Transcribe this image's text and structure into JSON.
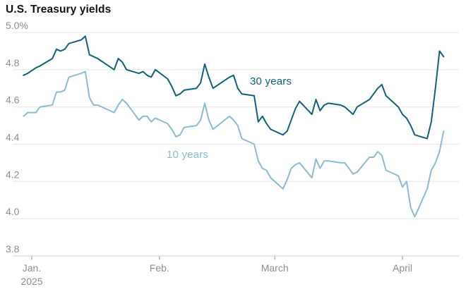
{
  "title": "U.S. Treasury yields",
  "chart_data": {
    "type": "line",
    "title": "U.S. Treasury yields",
    "grid": "horizontal",
    "legend": "inline-line-labels",
    "ylim": [
      3.8,
      5.0
    ],
    "y_ticks": {
      "labels": [
        "5.0%",
        "4.8",
        "4.6",
        "4.4",
        "4.2",
        "4.0",
        "3.8"
      ],
      "values": [
        5.0,
        4.8,
        4.6,
        4.4,
        4.2,
        4.0,
        3.8
      ]
    },
    "x_ticks": [
      {
        "label": "Jan.",
        "sublabel": "2025",
        "day_offset": 0
      },
      {
        "label": "Feb.",
        "day_offset": 31
      },
      {
        "label": "March",
        "day_offset": 59
      },
      {
        "label": "April",
        "day_offset": 90
      }
    ],
    "x": [
      "Dec. 30",
      "Dec. 31",
      "Jan. 2",
      "Jan. 3",
      "Jan. 6",
      "Jan. 7",
      "Jan. 8",
      "Jan. 9",
      "Jan. 10",
      "Jan. 13",
      "Jan. 14",
      "Jan. 15",
      "Jan. 16",
      "Jan. 17",
      "Jan. 21",
      "Jan. 22",
      "Jan. 23",
      "Jan. 24",
      "Jan. 27",
      "Jan. 28",
      "Jan. 29",
      "Jan. 30",
      "Jan. 31",
      "Feb. 3",
      "Feb. 4",
      "Feb. 5",
      "Feb. 6",
      "Feb. 7",
      "Feb. 10",
      "Feb. 11",
      "Feb. 12",
      "Feb. 13",
      "Feb. 14",
      "Feb. 18",
      "Feb. 19",
      "Feb. 20",
      "Feb. 21",
      "Feb. 24",
      "Feb. 25",
      "Feb. 26",
      "Feb. 27",
      "Feb. 28",
      "March 3",
      "March 4",
      "March 5",
      "March 6",
      "March 7",
      "March 10",
      "March 11",
      "March 12",
      "March 13",
      "March 14",
      "March 17",
      "March 18",
      "March 19",
      "March 20",
      "March 21",
      "March 24",
      "March 25",
      "March 26",
      "March 27",
      "March 28",
      "March 31",
      "April 1",
      "April 2",
      "April 3",
      "April 4",
      "April 7",
      "April 8",
      "April 9",
      "April 10",
      "April 11"
    ],
    "series": [
      {
        "name": "30 years",
        "color": "#0f6177",
        "values": [
          4.77,
          4.78,
          4.81,
          4.82,
          4.86,
          4.91,
          4.9,
          4.91,
          4.94,
          4.96,
          4.98,
          4.88,
          4.87,
          4.86,
          4.8,
          4.86,
          4.84,
          4.8,
          4.78,
          4.79,
          4.77,
          4.76,
          4.8,
          4.75,
          4.71,
          4.66,
          4.67,
          4.69,
          4.7,
          4.73,
          4.83,
          4.76,
          4.7,
          4.76,
          4.77,
          4.7,
          4.67,
          4.66,
          4.52,
          4.55,
          4.51,
          4.48,
          4.45,
          4.47,
          4.53,
          4.59,
          4.63,
          4.56,
          4.64,
          4.58,
          4.61,
          4.62,
          4.61,
          4.6,
          4.58,
          4.56,
          4.6,
          4.64,
          4.67,
          4.7,
          4.72,
          4.66,
          4.6,
          4.56,
          4.54,
          4.5,
          4.45,
          4.43,
          4.52,
          4.7,
          4.9,
          4.87
        ]
      },
      {
        "name": "10 years",
        "color": "#8bbad2",
        "values": [
          4.55,
          4.57,
          4.57,
          4.6,
          4.61,
          4.68,
          4.68,
          4.69,
          4.76,
          4.78,
          4.79,
          4.65,
          4.61,
          4.61,
          4.57,
          4.61,
          4.64,
          4.62,
          4.53,
          4.55,
          4.55,
          4.52,
          4.54,
          4.51,
          4.48,
          4.44,
          4.45,
          4.49,
          4.5,
          4.53,
          4.62,
          4.53,
          4.48,
          4.55,
          4.53,
          4.5,
          4.43,
          4.4,
          4.31,
          4.27,
          4.26,
          4.22,
          4.16,
          4.21,
          4.27,
          4.29,
          4.3,
          4.22,
          4.32,
          4.27,
          4.31,
          4.31,
          4.3,
          4.3,
          4.27,
          4.24,
          4.25,
          4.33,
          4.33,
          4.36,
          4.34,
          4.26,
          4.23,
          4.17,
          4.2,
          4.06,
          4.01,
          4.16,
          4.26,
          4.3,
          4.36,
          4.47
        ]
      }
    ]
  }
}
